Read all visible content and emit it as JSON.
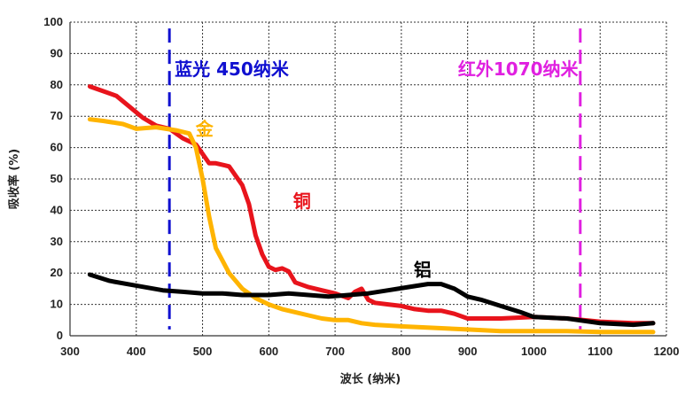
{
  "chart_data": {
    "type": "line",
    "title": "",
    "xlabel": "波长 (纳米)",
    "ylabel": "吸收率 (%)",
    "xlim": [
      300,
      1200
    ],
    "ylim": [
      0,
      100
    ],
    "xticks": [
      300,
      400,
      500,
      600,
      700,
      800,
      900,
      1000,
      1100,
      1200
    ],
    "yticks": [
      0,
      10,
      20,
      30,
      40,
      50,
      60,
      70,
      80,
      90,
      100
    ],
    "grid": true,
    "series": [
      {
        "name": "铜",
        "color": "#e8141c",
        "x": [
          330,
          350,
          370,
          390,
          410,
          430,
          450,
          470,
          490,
          500,
          510,
          520,
          540,
          560,
          570,
          580,
          590,
          600,
          610,
          620,
          630,
          640,
          660,
          680,
          700,
          720,
          730,
          740,
          750,
          760,
          780,
          800,
          820,
          840,
          860,
          880,
          900,
          950,
          1000,
          1050,
          1100,
          1150,
          1180
        ],
        "y": [
          79.5,
          78,
          76.5,
          73,
          69.5,
          67,
          66,
          63,
          61,
          58,
          55,
          55,
          54,
          48,
          42,
          32,
          26,
          22,
          21,
          21.5,
          20.5,
          17,
          15.5,
          14.5,
          13.5,
          12,
          14,
          15,
          11.5,
          10.5,
          10,
          9.5,
          8.5,
          8,
          8,
          7,
          5.5,
          5.5,
          6,
          5.5,
          4.5,
          4,
          4
        ]
      },
      {
        "name": "金",
        "color": "#ffb400",
        "x": [
          330,
          350,
          380,
          400,
          430,
          460,
          480,
          490,
          500,
          510,
          520,
          540,
          560,
          580,
          600,
          620,
          640,
          660,
          680,
          700,
          720,
          740,
          760,
          800,
          850,
          900,
          950,
          1000,
          1050,
          1100,
          1150,
          1180
        ],
        "y": [
          69,
          68.5,
          67.5,
          66,
          66.5,
          65.5,
          64.5,
          60,
          50,
          38,
          28,
          20,
          15,
          12,
          10,
          8.5,
          7.5,
          6.5,
          5.5,
          5,
          5,
          4,
          3.5,
          3,
          2.5,
          2,
          1.5,
          1.5,
          1.5,
          1.2,
          1.2,
          1.2
        ]
      },
      {
        "name": "铝",
        "color": "#000000",
        "x": [
          330,
          360,
          400,
          440,
          470,
          500,
          530,
          560,
          600,
          630,
          660,
          690,
          720,
          750,
          780,
          810,
          840,
          860,
          880,
          900,
          920,
          950,
          980,
          1000,
          1050,
          1100,
          1150,
          1180
        ],
        "y": [
          19.5,
          17.5,
          16,
          14.5,
          14,
          13.5,
          13.5,
          13,
          13,
          13.5,
          13,
          12.5,
          13,
          13.5,
          14.5,
          15.5,
          16.5,
          16.5,
          15,
          12.5,
          11.5,
          9.5,
          7.5,
          6,
          5.5,
          4,
          3.5,
          4
        ]
      }
    ],
    "markers": [
      {
        "x": 450,
        "color": "#1010d0",
        "label": "蓝光 450纳米"
      },
      {
        "x": 1070,
        "color": "#e020e0",
        "label": "红外1070纳米"
      }
    ]
  }
}
